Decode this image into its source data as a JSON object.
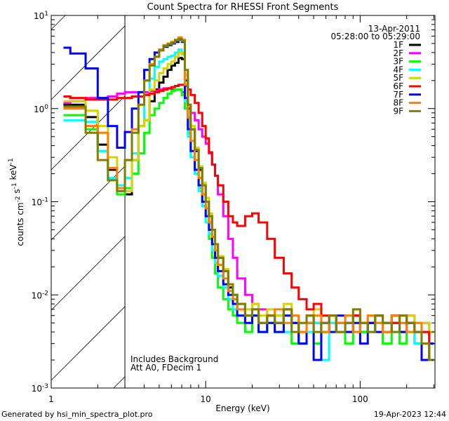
{
  "chart_data": {
    "type": "line",
    "title": "Count Spectra for RHESSI Front Segments",
    "xlabel": "Energy (keV)",
    "ylabel": "counts cm^-2 s^-1 keV^-1",
    "xscale": "log",
    "yscale": "log",
    "xlim": [
      1,
      305
    ],
    "ylim": [
      0.001,
      10
    ],
    "xticks": [
      1,
      10,
      100
    ],
    "xticklabels": [
      "1",
      "10",
      "100"
    ],
    "yticks": [
      0.001,
      0.01,
      0.1,
      1,
      10
    ],
    "yticklabels": [
      [
        "10",
        "-3"
      ],
      [
        "10",
        "-2"
      ],
      [
        "10",
        "-1"
      ],
      [
        "10",
        "0"
      ],
      [
        "10",
        "1"
      ]
    ],
    "grid": false,
    "legend_placement": "top-right",
    "date": "13-Apr-2011",
    "time_range": "05:28:00 to 05:29:00",
    "attenuator_boundary_keV": 3,
    "hatched_region": "below 3 keV",
    "annotations": [
      "Includes Background",
      "Att A0, FDecim 1"
    ],
    "energy_edges": [
      1.2,
      1.33,
      1.67,
      2.0,
      2.33,
      2.67,
      3.0,
      3.33,
      3.67,
      4.0,
      4.33,
      4.67,
      5.0,
      5.33,
      5.67,
      6.0,
      6.33,
      6.67,
      7.0,
      7.33,
      7.67,
      8.0,
      8.5,
      9.0,
      9.5,
      10,
      10.5,
      11,
      11.5,
      12,
      13,
      14,
      15,
      16,
      18,
      20,
      22,
      25,
      28,
      32,
      36,
      40,
      45,
      50,
      56,
      63,
      70,
      80,
      90,
      100,
      112,
      125,
      140,
      160,
      180,
      200,
      225,
      250,
      280,
      300
    ],
    "series": [
      {
        "name": "1F",
        "color": "#000000",
        "values": [
          1.1,
          1.1,
          0.81,
          0.41,
          0.22,
          0.13,
          0.12,
          0.28,
          0.65,
          0.75,
          1.2,
          1.6,
          1.9,
          2.2,
          2.6,
          2.9,
          3.1,
          3.5,
          3.4,
          2.0,
          1.0,
          0.6,
          0.35,
          0.22,
          0.15,
          0.1,
          0.07,
          0.05,
          0.035,
          0.025,
          0.018,
          0.012,
          0.01,
          0.008,
          0.006,
          0.007,
          0.005,
          0.006,
          0.005,
          0.007,
          0.005,
          0.003,
          0.006,
          0.005,
          0.004,
          0.006,
          0.004,
          0.005,
          0.006,
          0.004,
          0.005,
          0.006,
          0.004,
          0.005,
          0.004,
          0.005,
          0.003,
          0.004,
          0.002
        ]
      },
      {
        "name": "2F",
        "color": "#ff00ff",
        "values": [
          1.15,
          1.2,
          1.3,
          1.3,
          1.35,
          1.45,
          1.5,
          1.5,
          1.5,
          1.5,
          1.55,
          1.55,
          1.6,
          1.65,
          1.65,
          1.6,
          1.6,
          1.6,
          1.5,
          1.3,
          1.1,
          0.9,
          0.75,
          0.6,
          0.5,
          0.42,
          0.33,
          0.25,
          0.19,
          0.12,
          0.07,
          0.04,
          0.025,
          0.015,
          0.01,
          0.008,
          0.007,
          0.006,
          0.005,
          0.007,
          0.006,
          0.004,
          0.006,
          0.005,
          0.005,
          0.006,
          0.004,
          0.005,
          0.006,
          0.005,
          0.005,
          0.006,
          0.004,
          0.006,
          0.005,
          0.006,
          0.004,
          0.005,
          0.004
        ]
      },
      {
        "name": "3F",
        "color": "#00ff00",
        "values": [
          0.85,
          0.85,
          0.6,
          0.35,
          0.18,
          0.12,
          0.14,
          0.2,
          0.33,
          0.55,
          0.85,
          1.0,
          1.15,
          1.3,
          1.45,
          1.55,
          1.6,
          1.6,
          1.4,
          1.0,
          0.55,
          0.3,
          0.2,
          0.14,
          0.09,
          0.06,
          0.04,
          0.025,
          0.017,
          0.012,
          0.009,
          0.007,
          0.006,
          0.005,
          0.004,
          0.006,
          0.004,
          0.005,
          0.004,
          0.006,
          0.003,
          0.004,
          0.005,
          0.003,
          0.004,
          0.005,
          0.004,
          0.003,
          0.005,
          0.004,
          0.004,
          0.005,
          0.003,
          0.004,
          0.003,
          0.004,
          0.005,
          0.003,
          0.003
        ]
      },
      {
        "name": "4F",
        "color": "#00ffff",
        "values": [
          0.75,
          0.75,
          0.72,
          0.35,
          0.18,
          0.15,
          0.18,
          0.33,
          0.65,
          1.4,
          2.1,
          2.8,
          3.2,
          3.4,
          3.6,
          3.7,
          4.0,
          4.3,
          4.0,
          1.2,
          0.5,
          0.3,
          0.2,
          0.13,
          0.09,
          0.06,
          0.045,
          0.03,
          0.022,
          0.016,
          0.012,
          0.009,
          0.007,
          0.006,
          0.005,
          0.006,
          0.004,
          0.005,
          0.006,
          0.004,
          0.005,
          0.003,
          0.004,
          0.005,
          0.002,
          0.005,
          0.004,
          0.006,
          0.004,
          0.005,
          0.004,
          0.006,
          0.005,
          0.004,
          0.005,
          0.004,
          0.003,
          0.004,
          0.003
        ]
      },
      {
        "name": "5F",
        "color": "#d4d400",
        "values": [
          1.2,
          1.2,
          0.95,
          0.65,
          0.3,
          0.13,
          0.13,
          0.28,
          0.65,
          0.75,
          1.6,
          2.0,
          2.4,
          2.7,
          3.0,
          3.2,
          3.6,
          4.0,
          3.8,
          2.3,
          1.1,
          0.65,
          0.38,
          0.24,
          0.16,
          0.11,
          0.075,
          0.05,
          0.035,
          0.026,
          0.019,
          0.013,
          0.01,
          0.008,
          0.007,
          0.008,
          0.006,
          0.007,
          0.006,
          0.008,
          0.006,
          0.005,
          0.006,
          0.007,
          0.005,
          0.006,
          0.005,
          0.006,
          0.007,
          0.005,
          0.006,
          0.005,
          0.005,
          0.006,
          0.005,
          0.006,
          0.004,
          0.005,
          0.004
        ]
      },
      {
        "name": "6F",
        "color": "#ff0000",
        "values": [
          1.35,
          1.3,
          1.25,
          1.25,
          1.25,
          1.3,
          1.3,
          1.35,
          1.35,
          1.4,
          1.45,
          1.5,
          1.55,
          1.6,
          1.65,
          1.7,
          1.75,
          1.8,
          1.8,
          1.75,
          1.6,
          1.4,
          1.15,
          0.9,
          0.65,
          0.48,
          0.34,
          0.25,
          0.19,
          0.15,
          0.1,
          0.07,
          0.06,
          0.055,
          0.07,
          0.075,
          0.06,
          0.04,
          0.025,
          0.017,
          0.012,
          0.009,
          0.007,
          0.008,
          0.006,
          0.006,
          0.005,
          0.004,
          0.006,
          0.005,
          0.005,
          0.006,
          0.004,
          0.005,
          0.006,
          0.005,
          0.004,
          0.004,
          0.003
        ]
      },
      {
        "name": "7F",
        "color": "#0000ff",
        "values": [
          4.5,
          3.9,
          2.7,
          1.3,
          0.65,
          0.38,
          0.56,
          1.0,
          1.5,
          2.6,
          3.4,
          4.0,
          4.3,
          4.6,
          4.8,
          5.0,
          5.2,
          5.5,
          5.2,
          1.3,
          0.6,
          0.35,
          0.22,
          0.15,
          0.1,
          0.07,
          0.05,
          0.035,
          0.025,
          0.018,
          0.013,
          0.01,
          0.008,
          0.006,
          0.005,
          0.006,
          0.004,
          0.005,
          0.004,
          0.006,
          0.005,
          0.003,
          0.005,
          0.002,
          0.005,
          0.004,
          0.006,
          0.004,
          0.005,
          0.003,
          0.005,
          0.004,
          0.005,
          0.006,
          0.004,
          0.005,
          0.004,
          0.002,
          0.003
        ]
      },
      {
        "name": "8F",
        "color": "#ff8000",
        "values": [
          1.0,
          1.0,
          0.65,
          0.55,
          0.23,
          0.14,
          0.28,
          0.6,
          1.1,
          2.0,
          3.0,
          3.6,
          4.3,
          4.8,
          5.0,
          5.2,
          5.5,
          5.8,
          5.5,
          1.8,
          0.8,
          0.45,
          0.28,
          0.18,
          0.12,
          0.085,
          0.06,
          0.042,
          0.03,
          0.021,
          0.015,
          0.011,
          0.009,
          0.007,
          0.006,
          0.007,
          0.005,
          0.006,
          0.007,
          0.005,
          0.006,
          0.004,
          0.005,
          0.006,
          0.004,
          0.006,
          0.005,
          0.006,
          0.004,
          0.005,
          0.006,
          0.005,
          0.004,
          0.006,
          0.005,
          0.004,
          0.005,
          0.003,
          0.002
        ]
      },
      {
        "name": "9F",
        "color": "#808000",
        "values": [
          1.05,
          1.05,
          0.55,
          0.28,
          0.17,
          0.13,
          0.28,
          0.55,
          1.1,
          2.0,
          2.9,
          3.6,
          4.2,
          4.7,
          4.9,
          5.1,
          5.4,
          5.6,
          5.3,
          2.6,
          1.1,
          0.6,
          0.36,
          0.23,
          0.15,
          0.1,
          0.07,
          0.05,
          0.035,
          0.025,
          0.018,
          0.013,
          0.01,
          0.008,
          0.006,
          0.007,
          0.005,
          0.006,
          0.005,
          0.007,
          0.004,
          0.005,
          0.006,
          0.004,
          0.005,
          0.006,
          0.004,
          0.005,
          0.007,
          0.005,
          0.004,
          0.006,
          0.005,
          0.004,
          0.006,
          0.005,
          0.004,
          0.003,
          0.002
        ]
      }
    ]
  },
  "footer": {
    "generated_by": "Generated by hsi_min_spectra_plot.pro",
    "timestamp": "19-Apr-2023 12:44"
  }
}
